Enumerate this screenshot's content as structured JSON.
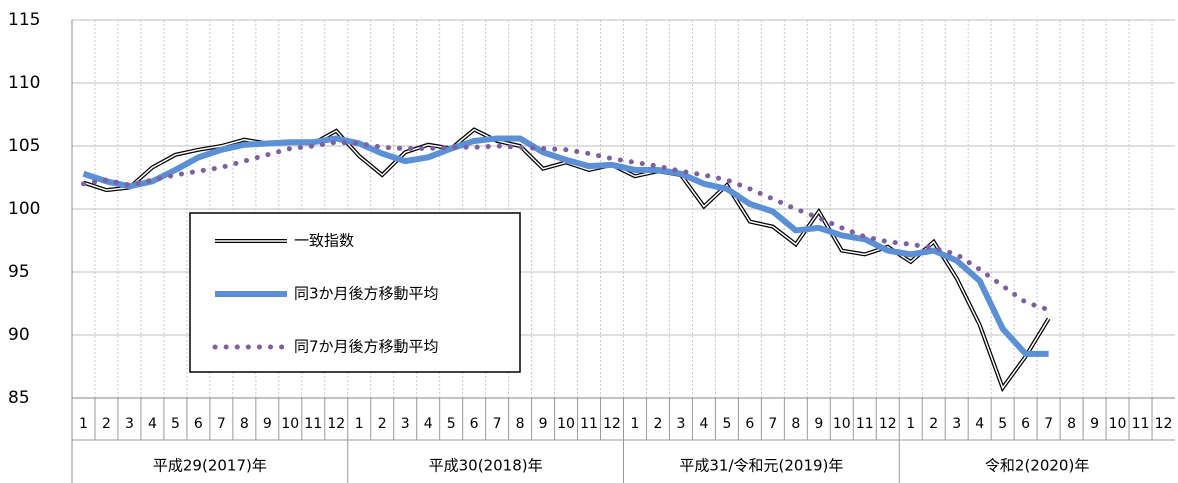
{
  "chart_data": {
    "type": "line",
    "categories": [
      "1",
      "2",
      "3",
      "4",
      "5",
      "6",
      "7",
      "8",
      "9",
      "10",
      "11",
      "12",
      "1",
      "2",
      "3",
      "4",
      "5",
      "6",
      "7",
      "8",
      "9",
      "10",
      "11",
      "12",
      "1",
      "2",
      "3",
      "4",
      "5",
      "6",
      "7",
      "8",
      "9",
      "10",
      "11",
      "12",
      "1",
      "2",
      "3",
      "4",
      "5",
      "6",
      "7",
      "8",
      "9",
      "10",
      "11",
      "12"
    ],
    "category_groups": [
      "平成29(2017)年",
      "平成30(2018)年",
      "平成31/令和元(2019)年",
      "令和2(2020)年"
    ],
    "series": [
      {
        "name": "一致指数",
        "color": "#000000",
        "style": "double",
        "values": [
          102.1,
          101.5,
          101.7,
          103.3,
          104.3,
          104.7,
          105.0,
          105.5,
          105.2,
          105.3,
          105.2,
          106.2,
          104.2,
          102.7,
          104.5,
          105.1,
          104.8,
          106.3,
          105.4,
          105.0,
          103.2,
          103.7,
          103.1,
          103.5,
          102.6,
          103.0,
          102.7,
          100.2,
          101.9,
          99.0,
          98.6,
          97.2,
          99.8,
          96.7,
          96.4,
          97.0,
          95.8,
          97.4,
          94.5,
          90.8,
          85.8,
          88.3,
          91.3,
          null,
          null,
          null,
          null,
          null
        ]
      },
      {
        "name": "同3か月後方移動平均",
        "color": "#5b8fd6",
        "style": "solid",
        "values": [
          102.8,
          102.2,
          101.8,
          102.2,
          103.1,
          104.1,
          104.7,
          105.1,
          105.2,
          105.3,
          105.3,
          105.6,
          105.2,
          104.4,
          103.8,
          104.1,
          104.8,
          105.4,
          105.6,
          105.6,
          104.5,
          103.9,
          103.4,
          103.5,
          103.1,
          103.1,
          102.8,
          102.0,
          101.6,
          100.4,
          99.8,
          98.3,
          98.5,
          97.9,
          97.6,
          96.7,
          96.4,
          96.7,
          95.9,
          94.3,
          90.5,
          88.5,
          88.5,
          null,
          null,
          null,
          null,
          null
        ]
      },
      {
        "name": "同7か月後方移動平均",
        "color": "#7f5fa0",
        "style": "dotted",
        "values": [
          102.0,
          102.3,
          101.9,
          102.3,
          102.7,
          103.0,
          103.3,
          103.8,
          104.3,
          104.8,
          105.0,
          105.3,
          105.2,
          104.9,
          104.8,
          104.8,
          104.9,
          104.9,
          105.0,
          104.9,
          104.8,
          104.7,
          104.4,
          104.0,
          103.7,
          103.4,
          103.0,
          102.7,
          102.3,
          101.6,
          100.8,
          100.0,
          99.3,
          98.5,
          97.8,
          97.4,
          97.2,
          96.9,
          96.4,
          95.2,
          93.9,
          92.6,
          92.0,
          null,
          null,
          null,
          null,
          null
        ]
      }
    ],
    "ylim": [
      85,
      115
    ],
    "yticks": [
      85,
      90,
      95,
      100,
      105,
      110,
      115
    ],
    "grid": true
  }
}
